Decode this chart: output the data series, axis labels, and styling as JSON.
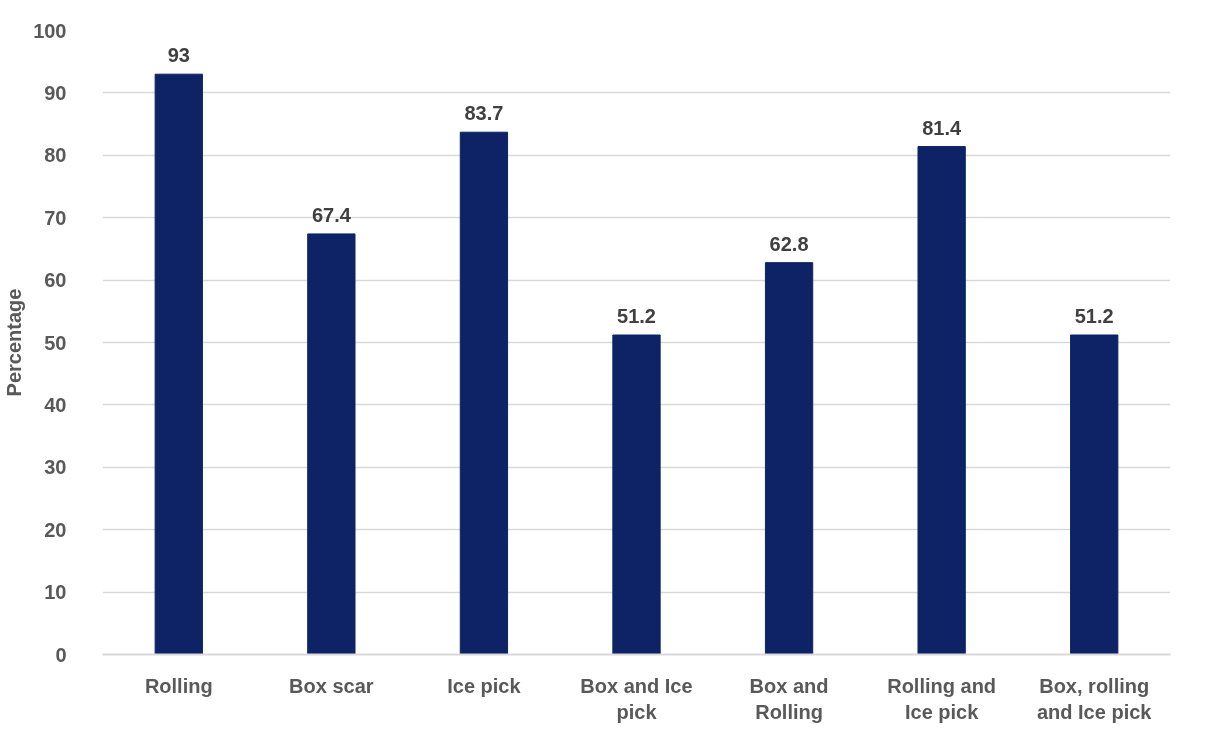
{
  "chart_data": {
    "type": "bar",
    "ylabel": "Percentage",
    "categories": [
      "Rolling",
      "Box scar",
      "Ice pick",
      "Box and Ice pick",
      "Box and Rolling",
      "Rolling and Ice pick",
      "Box, rolling and Ice pick"
    ],
    "values": [
      93,
      67.4,
      83.7,
      51.2,
      62.8,
      81.4,
      51.2
    ],
    "color": "#0d2366",
    "ylim": [
      0,
      100
    ],
    "yticks": [
      0,
      10,
      20,
      30,
      40,
      50,
      60,
      70,
      80,
      90,
      100
    ],
    "grid": "y",
    "data_labels": true
  }
}
